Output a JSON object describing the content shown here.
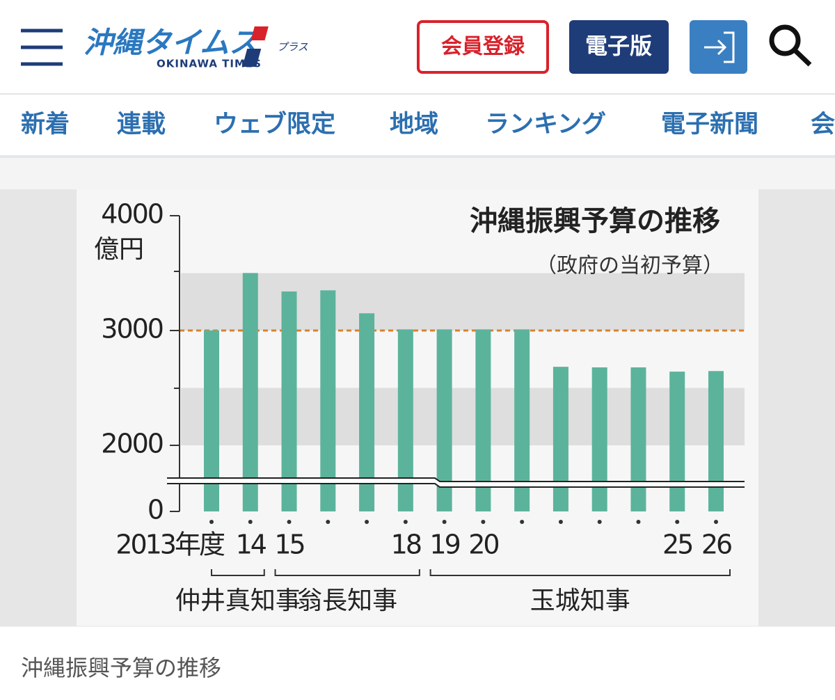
{
  "header": {
    "logo": "沖縄タイムス",
    "logo_sub": "プラス",
    "logo_en": "OKINAWA TIMES",
    "buttons": [
      "会員登録",
      "電子版"
    ]
  },
  "nav": [
    "新着",
    "連載",
    "ウェブ限定",
    "地域",
    "ランキング",
    "電子新聞",
    "会"
  ],
  "chart_data": {
    "type": "bar",
    "title": "沖縄振興予算の推移",
    "subtitle": "（政府の当初予算）",
    "unit": "億円",
    "categories": [
      "2013年度",
      "14",
      "15",
      null,
      null,
      "18",
      "19",
      "20",
      null,
      null,
      null,
      null,
      "25",
      "26"
    ],
    "values": [
      3001,
      3501,
      3340,
      3350,
      3150,
      3010,
      3010,
      3010,
      3010,
      2684,
      2679,
      2679,
      2642,
      2647
    ],
    "color": "#5cb39b",
    "ylim": [
      0,
      4000
    ],
    "yticks": [
      0,
      2000,
      3000,
      4000
    ],
    "axis_break": true,
    "reference_line": {
      "value": 3000,
      "color": "#d9822b"
    },
    "shaded_ranges": [
      [
        2000,
        2500
      ],
      [
        3000,
        3500
      ]
    ],
    "periods": [
      {
        "label": "仲井真知事",
        "years": 2
      },
      {
        "label": "翁長知事",
        "years": 4
      },
      {
        "label": "玉城知事",
        "years": 8
      }
    ]
  },
  "caption": "沖縄振興予算の推移"
}
